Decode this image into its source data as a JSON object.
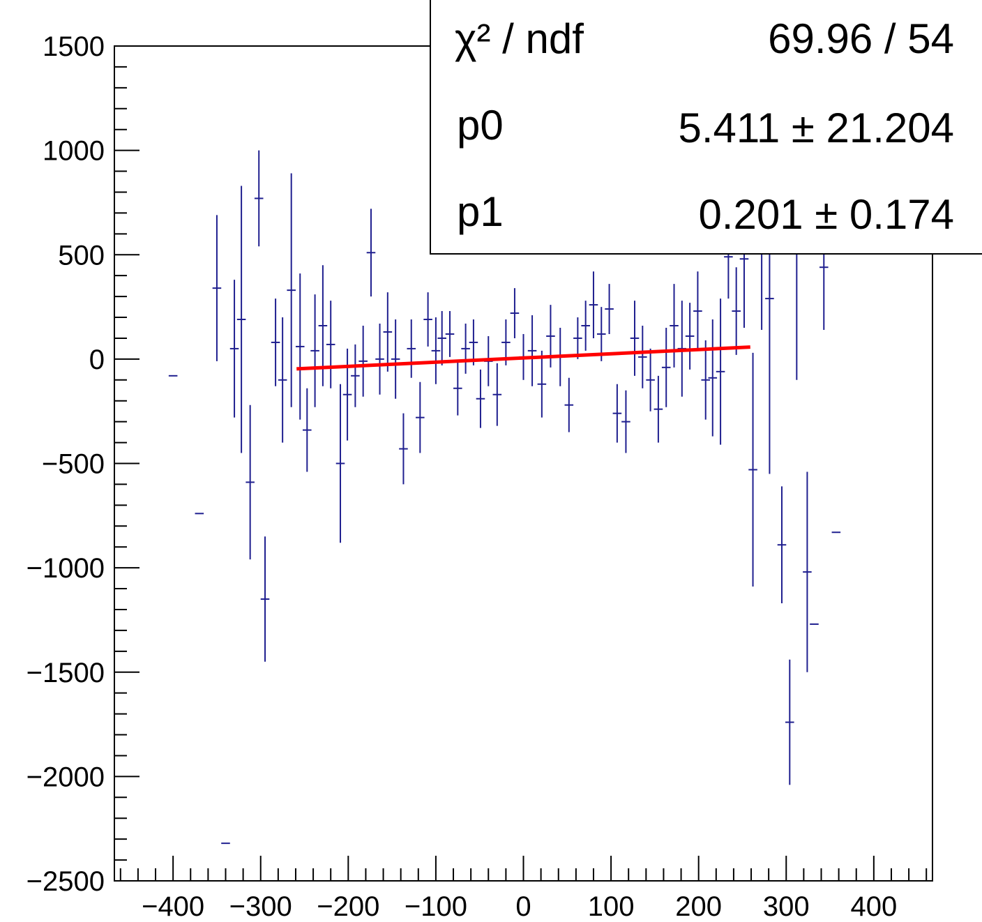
{
  "colors": {
    "points": "#1f1f8f",
    "fit_line": "#ff0000",
    "axis": "#000000",
    "background": "#ffffff"
  },
  "stats_box": {
    "chi2_label": "χ² / ndf",
    "chi2_value": "69.96 / 54",
    "p0_label": "p0",
    "p0_value": "5.411 ± 21.204",
    "p1_label": "p1",
    "p1_value": "0.201 ± 0.174"
  },
  "chart_data": {
    "type": "scatter",
    "title": "",
    "xlabel": "",
    "ylabel": "",
    "xlim": [
      -467,
      467
    ],
    "ylim": [
      -2500,
      1500
    ],
    "x_ticks": [
      -400,
      -300,
      -200,
      -100,
      0,
      100,
      200,
      300,
      400
    ],
    "x_tick_labels": [
      "−400",
      "−300",
      "−200",
      "−100",
      "0",
      "100",
      "200",
      "300",
      "400"
    ],
    "y_ticks": [
      1500,
      1000,
      500,
      0,
      -500,
      -1000,
      -1500,
      -2000,
      -2500
    ],
    "y_tick_labels": [
      "1500",
      "1000",
      "500",
      "0",
      "−500",
      "−1000",
      "−1500",
      "−2000",
      "−2500"
    ],
    "grid": false,
    "series": [
      {
        "points": [
          {
            "x": -400,
            "y": -80,
            "err": 0
          },
          {
            "x": -370,
            "y": -740,
            "err": 0
          },
          {
            "x": -350,
            "y": 340,
            "err": 350
          },
          {
            "x": -340,
            "y": -2320,
            "err": 0
          },
          {
            "x": -330,
            "y": 50,
            "err": 330
          },
          {
            "x": -322,
            "y": 190,
            "err": 640
          },
          {
            "x": -312,
            "y": -590,
            "err": 370
          },
          {
            "x": -302,
            "y": 770,
            "err": 230
          },
          {
            "x": -295,
            "y": -1150,
            "err": 300
          },
          {
            "x": -283,
            "y": 80,
            "err": 210
          },
          {
            "x": -275,
            "y": -100,
            "err": 300
          },
          {
            "x": -265,
            "y": 330,
            "err": 560
          },
          {
            "x": -255,
            "y": 60,
            "err": 350
          },
          {
            "x": -247,
            "y": -340,
            "err": 200
          },
          {
            "x": -238,
            "y": 40,
            "err": 270
          },
          {
            "x": -229,
            "y": 160,
            "err": 290
          },
          {
            "x": -220,
            "y": 70,
            "err": 210
          },
          {
            "x": -209,
            "y": -500,
            "err": 380
          },
          {
            "x": -201,
            "y": -170,
            "err": 220
          },
          {
            "x": -192,
            "y": -80,
            "err": 150
          },
          {
            "x": -183,
            "y": -10,
            "err": 170
          },
          {
            "x": -174,
            "y": 510,
            "err": 210
          },
          {
            "x": -164,
            "y": 0,
            "err": 170
          },
          {
            "x": -155,
            "y": 130,
            "err": 190
          },
          {
            "x": -146,
            "y": 0,
            "err": 190
          },
          {
            "x": -137,
            "y": -430,
            "err": 170
          },
          {
            "x": -128,
            "y": 50,
            "err": 140
          },
          {
            "x": -118,
            "y": -280,
            "err": 170
          },
          {
            "x": -109,
            "y": 190,
            "err": 130
          },
          {
            "x": -100,
            "y": 40,
            "err": 160
          },
          {
            "x": -93,
            "y": 100,
            "err": 130
          },
          {
            "x": -84,
            "y": 120,
            "err": 110
          },
          {
            "x": -75,
            "y": -140,
            "err": 130
          },
          {
            "x": -66,
            "y": 50,
            "err": 120
          },
          {
            "x": -57,
            "y": 80,
            "err": 110
          },
          {
            "x": -49,
            "y": -190,
            "err": 140
          },
          {
            "x": -40,
            "y": -10,
            "err": 120
          },
          {
            "x": -30,
            "y": -170,
            "err": 150
          },
          {
            "x": -20,
            "y": 80,
            "err": 110
          },
          {
            "x": -10,
            "y": 220,
            "err": 120
          },
          {
            "x": 0,
            "y": 10,
            "err": 110
          },
          {
            "x": 10,
            "y": 40,
            "err": 170
          },
          {
            "x": 21,
            "y": -120,
            "err": 160
          },
          {
            "x": 31,
            "y": 110,
            "err": 150
          },
          {
            "x": 42,
            "y": 10,
            "err": 140
          },
          {
            "x": 52,
            "y": -220,
            "err": 130
          },
          {
            "x": 62,
            "y": 100,
            "err": 100
          },
          {
            "x": 71,
            "y": 160,
            "err": 120
          },
          {
            "x": 80,
            "y": 260,
            "err": 160
          },
          {
            "x": 89,
            "y": 120,
            "err": 130
          },
          {
            "x": 98,
            "y": 240,
            "err": 120
          },
          {
            "x": 107,
            "y": -260,
            "err": 140
          },
          {
            "x": 117,
            "y": -300,
            "err": 150
          },
          {
            "x": 127,
            "y": 100,
            "err": 180
          },
          {
            "x": 136,
            "y": 10,
            "err": 150
          },
          {
            "x": 145,
            "y": -100,
            "err": 150
          },
          {
            "x": 154,
            "y": -240,
            "err": 160
          },
          {
            "x": 163,
            "y": -40,
            "err": 190
          },
          {
            "x": 172,
            "y": 160,
            "err": 200
          },
          {
            "x": 181,
            "y": 50,
            "err": 230
          },
          {
            "x": 190,
            "y": 110,
            "err": 160
          },
          {
            "x": 199,
            "y": 230,
            "err": 190
          },
          {
            "x": 208,
            "y": -100,
            "err": 190
          },
          {
            "x": 216,
            "y": -90,
            "err": 280
          },
          {
            "x": 225,
            "y": -60,
            "err": 350
          },
          {
            "x": 234,
            "y": 490,
            "err": 200
          },
          {
            "x": 243,
            "y": 230,
            "err": 210
          },
          {
            "x": 252,
            "y": 480,
            "err": 330
          },
          {
            "x": 262,
            "y": -530,
            "err": 560
          },
          {
            "x": 272,
            "y": 520,
            "err": 380
          },
          {
            "x": 281,
            "y": 290,
            "err": 840
          },
          {
            "x": 295,
            "y": -890,
            "err": 280
          },
          {
            "x": 304,
            "y": -1740,
            "err": 300
          },
          {
            "x": 312,
            "y": 590,
            "err": 690
          },
          {
            "x": 324,
            "y": -1020,
            "err": 480
          },
          {
            "x": 332,
            "y": -1270,
            "err": 0
          },
          {
            "x": 343,
            "y": 440,
            "err": 300
          },
          {
            "x": 357,
            "y": -830,
            "err": 0
          }
        ]
      }
    ],
    "fit": {
      "type": "linear",
      "p0": 5.411,
      "p1": 0.201,
      "x_range": [
        -259,
        259
      ]
    }
  }
}
